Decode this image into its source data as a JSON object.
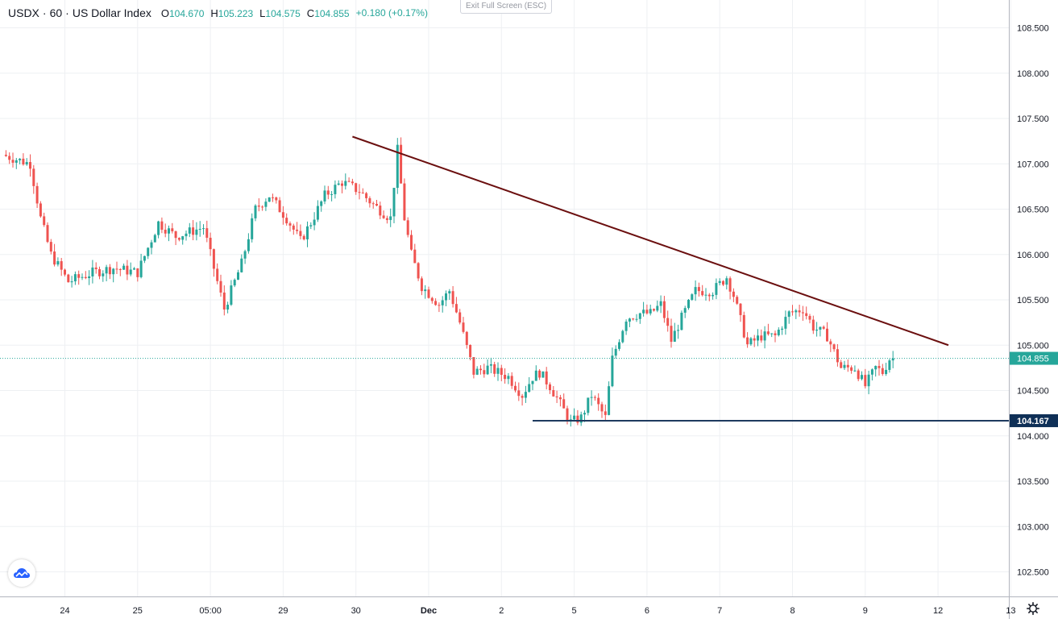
{
  "legend": {
    "symbol": "USDX",
    "separator1": "·",
    "interval": "60",
    "separator2": "·",
    "name": "US Dollar Index",
    "open_label": "O",
    "open": "104.670",
    "high_label": "H",
    "high": "105.223",
    "low_label": "L",
    "low": "104.575",
    "close_label": "C",
    "close": "104.855",
    "change": "+0.180 (+0.17%)"
  },
  "exit_fullscreen": "Exit Full Screen (ESC)",
  "colors": {
    "up": "#26a69a",
    "down": "#ef5350",
    "grid": "#eef0f3",
    "trendline": "#6b0f0f",
    "support_line": "#1e3a5f",
    "price_tag": "#26a69a",
    "support_tag": "#0f3057"
  },
  "icons": {
    "logo": "tradingview-cloud-icon",
    "settings": "gear-icon"
  },
  "chart_data": {
    "type": "candlestick",
    "title": "USDX · 60 · US Dollar Index",
    "ylim": [
      102.3,
      109.0
    ],
    "y_ticks": [
      "108.500",
      "108.000",
      "107.500",
      "107.000",
      "106.500",
      "106.000",
      "105.500",
      "105.000",
      "104.500",
      "104.000",
      "103.500",
      "103.000",
      "102.500"
    ],
    "x_ticks": [
      {
        "t": 17,
        "label": "24"
      },
      {
        "t": 38,
        "label": "25"
      },
      {
        "t": 59,
        "label": "05:00"
      },
      {
        "t": 80,
        "label": "29"
      },
      {
        "t": 101,
        "label": "30"
      },
      {
        "t": 122,
        "label": "Dec"
      },
      {
        "t": 143,
        "label": "2"
      },
      {
        "t": 164,
        "label": "5"
      },
      {
        "t": 185,
        "label": "6"
      },
      {
        "t": 206,
        "label": "7"
      },
      {
        "t": 227,
        "label": "8"
      },
      {
        "t": 248,
        "label": "9"
      },
      {
        "t": 269,
        "label": "12"
      },
      {
        "t": 290,
        "label": "13"
      }
    ],
    "candle_range": [
      0,
      256
    ],
    "anchors": [
      [
        0,
        107.1
      ],
      [
        8,
        107.0
      ],
      [
        11,
        106.4
      ],
      [
        14,
        106.0
      ],
      [
        19,
        105.7
      ],
      [
        26,
        105.8
      ],
      [
        32,
        105.85
      ],
      [
        39,
        105.8
      ],
      [
        45,
        106.35
      ],
      [
        50,
        106.2
      ],
      [
        58,
        106.3
      ],
      [
        64,
        105.4
      ],
      [
        69,
        105.9
      ],
      [
        73,
        106.5
      ],
      [
        77,
        106.65
      ],
      [
        82,
        106.4
      ],
      [
        86,
        106.15
      ],
      [
        89,
        106.35
      ],
      [
        93,
        106.65
      ],
      [
        98,
        106.8
      ],
      [
        103,
        106.7
      ],
      [
        107,
        106.55
      ],
      [
        112,
        106.4
      ],
      [
        114,
        107.15
      ],
      [
        116,
        106.4
      ],
      [
        118,
        106.0
      ],
      [
        121,
        105.65
      ],
      [
        126,
        105.45
      ],
      [
        129,
        105.6
      ],
      [
        132,
        105.25
      ],
      [
        136,
        104.7
      ],
      [
        140,
        104.75
      ],
      [
        146,
        104.65
      ],
      [
        150,
        104.45
      ],
      [
        153,
        104.65
      ],
      [
        155,
        104.7
      ],
      [
        158,
        104.55
      ],
      [
        161,
        104.35
      ],
      [
        164,
        104.15
      ],
      [
        167,
        104.2
      ],
      [
        170,
        104.45
      ],
      [
        174,
        104.2
      ],
      [
        176,
        104.85
      ],
      [
        180,
        105.3
      ],
      [
        184,
        105.35
      ],
      [
        187,
        105.35
      ],
      [
        190,
        105.45
      ],
      [
        193,
        105.05
      ],
      [
        196,
        105.3
      ],
      [
        200,
        105.6
      ],
      [
        205,
        105.6
      ],
      [
        209,
        105.75
      ],
      [
        211,
        105.55
      ],
      [
        215,
        105.0
      ],
      [
        219,
        105.1
      ],
      [
        223,
        105.1
      ],
      [
        227,
        105.35
      ],
      [
        231,
        105.4
      ],
      [
        234,
        105.2
      ],
      [
        238,
        105.1
      ],
      [
        242,
        104.75
      ],
      [
        246,
        104.75
      ],
      [
        249,
        104.55
      ],
      [
        252,
        104.75
      ],
      [
        254,
        104.7
      ],
      [
        256,
        104.85
      ]
    ],
    "last_price": 104.855,
    "last_price_label": "104.855",
    "support_level": 104.167,
    "support_label": "104.167",
    "support_start_t": 152,
    "trendline": {
      "t1": 100,
      "y1": 107.3,
      "t2": 272,
      "y2": 105.0
    }
  }
}
